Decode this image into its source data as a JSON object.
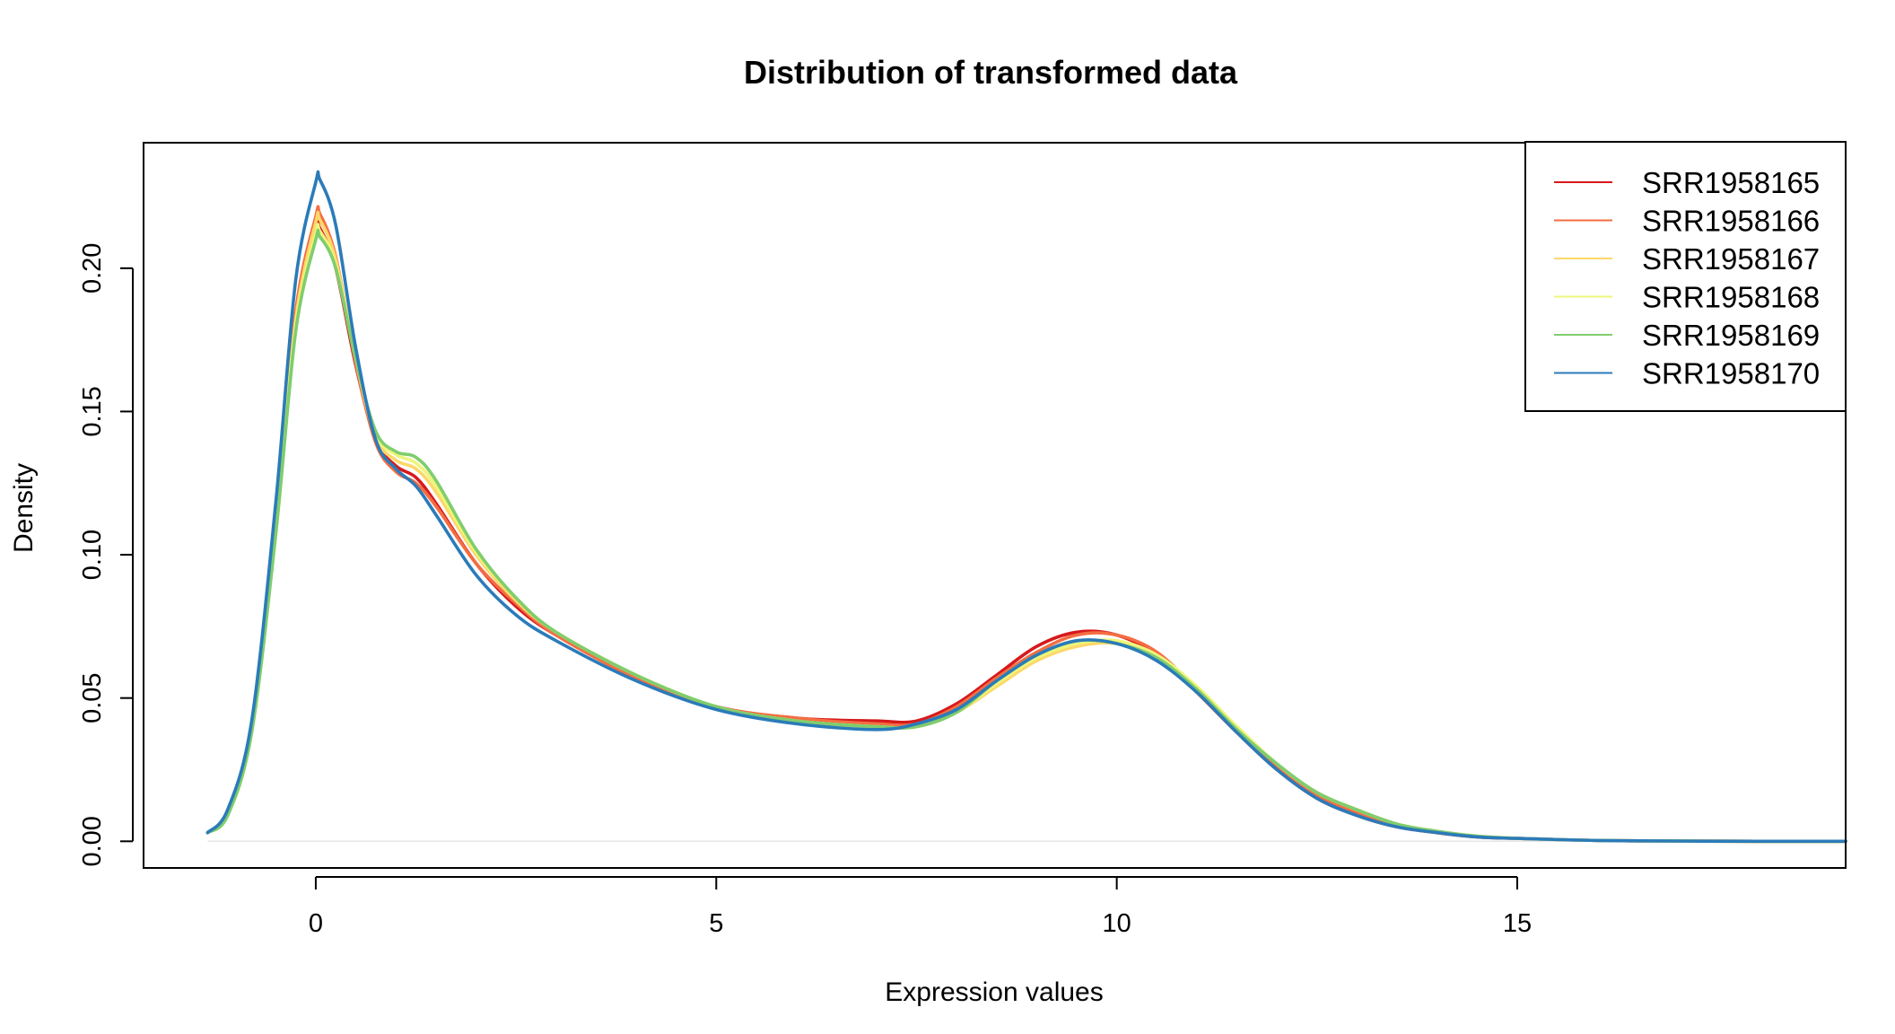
{
  "chart_data": {
    "type": "line",
    "title": "Distribution of transformed data",
    "xlabel": "Expression values",
    "ylabel": "Density",
    "xlim": [
      -2.15,
      19.1
    ],
    "ylim": [
      -0.0093,
      0.2438
    ],
    "x_ticks": [
      0,
      5,
      10,
      15
    ],
    "x_tick_labels": [
      "0",
      "5",
      "10",
      "15"
    ],
    "y_ticks": [
      0.0,
      0.05,
      0.1,
      0.15,
      0.2
    ],
    "y_tick_labels": [
      "0.00",
      "0.05",
      "0.10",
      "0.15",
      "0.20"
    ],
    "grid": false,
    "legend_position": "top-right",
    "x": [
      -1.35,
      -1.1,
      -0.8,
      -0.5,
      -0.25,
      0.0,
      0.05,
      0.25,
      0.5,
      0.75,
      1.0,
      1.25,
      1.5,
      2.0,
      2.5,
      3.0,
      4.0,
      5.0,
      6.0,
      7.0,
      7.5,
      8.0,
      8.5,
      9.0,
      9.5,
      10.0,
      10.5,
      11.0,
      11.5,
      12.0,
      12.5,
      13.0,
      13.5,
      14.0,
      14.5,
      15.0,
      16.0,
      17.0,
      18.0,
      19.1
    ],
    "series": [
      {
        "name": "SRR1958165",
        "color": "#D7191C",
        "values": [
          0.003,
          0.01,
          0.04,
          0.11,
          0.18,
          0.213,
          0.214,
          0.2,
          0.166,
          0.14,
          0.131,
          0.127,
          0.118,
          0.097,
          0.082,
          0.072,
          0.057,
          0.047,
          0.043,
          0.042,
          0.042,
          0.048,
          0.058,
          0.068,
          0.073,
          0.072,
          0.065,
          0.052,
          0.038,
          0.025,
          0.015,
          0.009,
          0.005,
          0.003,
          0.0015,
          0.001,
          0.0003,
          0.0001,
          0.0,
          0.0
        ]
      },
      {
        "name": "SRR1958166",
        "color": "#F46D43",
        "values": [
          0.003,
          0.01,
          0.04,
          0.112,
          0.185,
          0.218,
          0.219,
          0.204,
          0.167,
          0.139,
          0.129,
          0.125,
          0.117,
          0.097,
          0.083,
          0.072,
          0.057,
          0.047,
          0.043,
          0.041,
          0.041,
          0.047,
          0.057,
          0.066,
          0.072,
          0.072,
          0.066,
          0.053,
          0.039,
          0.026,
          0.016,
          0.01,
          0.006,
          0.003,
          0.0017,
          0.001,
          0.0003,
          0.0001,
          0.0,
          0.0
        ]
      },
      {
        "name": "SRR1958167",
        "color": "#FDD86A",
        "values": [
          0.003,
          0.01,
          0.039,
          0.11,
          0.182,
          0.216,
          0.217,
          0.203,
          0.168,
          0.141,
          0.133,
          0.13,
          0.122,
          0.1,
          0.084,
          0.073,
          0.058,
          0.047,
          0.042,
          0.04,
          0.04,
          0.045,
          0.054,
          0.063,
          0.068,
          0.069,
          0.064,
          0.053,
          0.04,
          0.027,
          0.017,
          0.011,
          0.006,
          0.0035,
          0.0018,
          0.001,
          0.0003,
          0.0001,
          0.0,
          0.0
        ]
      },
      {
        "name": "SRR1958168",
        "color": "#EEF57A",
        "values": [
          0.003,
          0.009,
          0.038,
          0.108,
          0.18,
          0.212,
          0.213,
          0.201,
          0.168,
          0.142,
          0.135,
          0.132,
          0.124,
          0.101,
          0.085,
          0.073,
          0.058,
          0.047,
          0.042,
          0.04,
          0.04,
          0.045,
          0.055,
          0.064,
          0.069,
          0.07,
          0.065,
          0.054,
          0.04,
          0.027,
          0.017,
          0.011,
          0.006,
          0.0035,
          0.0018,
          0.001,
          0.0003,
          0.0001,
          0.0,
          0.0
        ]
      },
      {
        "name": "SRR1958169",
        "color": "#7FCD6E",
        "values": [
          0.003,
          0.009,
          0.038,
          0.107,
          0.178,
          0.21,
          0.211,
          0.2,
          0.168,
          0.143,
          0.136,
          0.134,
          0.126,
          0.102,
          0.085,
          0.073,
          0.058,
          0.047,
          0.042,
          0.04,
          0.04,
          0.045,
          0.056,
          0.065,
          0.07,
          0.069,
          0.064,
          0.053,
          0.039,
          0.027,
          0.017,
          0.011,
          0.006,
          0.0035,
          0.0018,
          0.001,
          0.0003,
          0.0001,
          0.0,
          0.0
        ]
      },
      {
        "name": "SRR1958170",
        "color": "#2B7BB9",
        "values": [
          0.003,
          0.011,
          0.042,
          0.118,
          0.196,
          0.23,
          0.231,
          0.215,
          0.172,
          0.14,
          0.13,
          0.124,
          0.114,
          0.093,
          0.079,
          0.07,
          0.056,
          0.046,
          0.041,
          0.039,
          0.041,
          0.046,
          0.056,
          0.065,
          0.07,
          0.069,
          0.063,
          0.052,
          0.038,
          0.025,
          0.015,
          0.009,
          0.005,
          0.003,
          0.0015,
          0.001,
          0.0003,
          0.0001,
          0.0,
          0.0
        ]
      }
    ]
  }
}
